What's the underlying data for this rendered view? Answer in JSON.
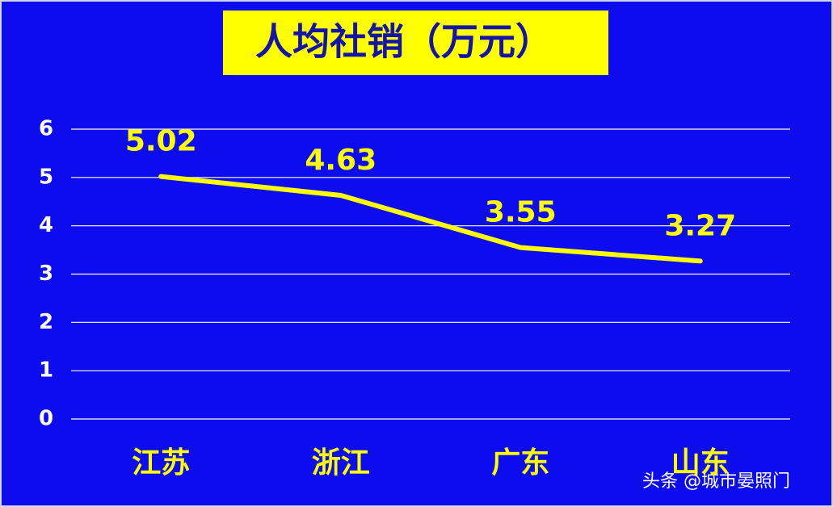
{
  "chart_data": {
    "type": "line",
    "title": "人均社销（万元）",
    "categories": [
      "江苏",
      "浙江",
      "广东",
      "山东"
    ],
    "values": [
      5.02,
      4.63,
      3.55,
      3.27
    ],
    "color": "#ffff00",
    "ylim": [
      0,
      6
    ],
    "yticks": [
      0,
      1,
      2,
      3,
      4,
      5,
      6
    ],
    "grid": true
  },
  "watermark": "头条 @城市晏照门"
}
